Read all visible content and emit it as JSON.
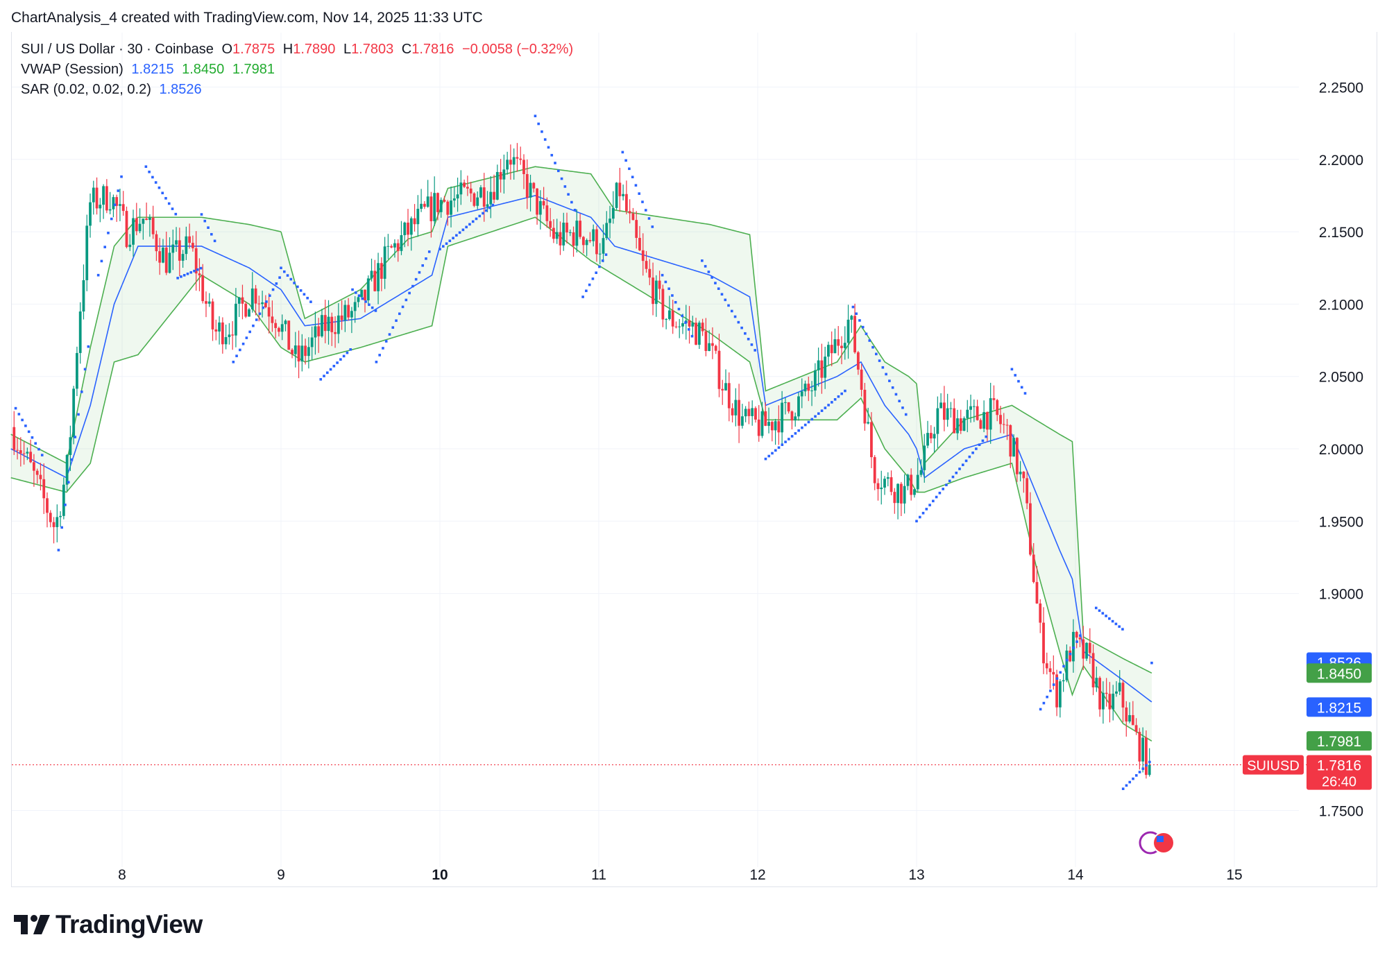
{
  "header": {
    "title": "ChartAnalysis_4 created with TradingView.com, Nov 14, 2025 11:33 UTC"
  },
  "legend": {
    "symbol": "SUI / US Dollar · 30 · Coinbase",
    "o_label": "O",
    "o": "1.7875",
    "h_label": "H",
    "h": "1.7890",
    "l_label": "L",
    "l": "1.7803",
    "c_label": "C",
    "c": "1.7816",
    "change": "−0.0058 (−0.32%)",
    "vwap_label": "VWAP (Session)",
    "vwap_mid": "1.8215",
    "vwap_up": "1.8450",
    "vwap_low": "1.7981",
    "sar_label": "SAR (0.02, 0.02, 0.2)",
    "sar": "1.8526"
  },
  "price_tags": {
    "sar": "1.8526",
    "vwap_up": "1.8450",
    "vwap_mid": "1.8215",
    "vwap_low": "1.7981",
    "symbol": "SUIUSD",
    "last": "1.7816",
    "countdown": "26:40"
  },
  "footer": {
    "brand": "TradingView"
  },
  "colors": {
    "up": "#089981",
    "down": "#f23645",
    "vwap": "#2962ff",
    "band": "#4caf50",
    "sar": "#2962ff"
  },
  "chart_data": {
    "type": "candlestick",
    "instrument": "SUIUSD",
    "interval": "30",
    "y_ticks": [
      "2.2500",
      "2.2000",
      "2.1500",
      "2.1000",
      "2.0500",
      "2.0000",
      "1.9500",
      "1.9000",
      "1.7500"
    ],
    "x_ticks": [
      "8",
      "9",
      "10",
      "11",
      "12",
      "13",
      "14",
      "15"
    ],
    "ylim": [
      1.72,
      2.28
    ],
    "x_range_days": [
      7.3,
      15.5
    ],
    "grid": true,
    "last_price": 1.7816,
    "close_path": [
      [
        7.32,
        2.015
      ],
      [
        7.45,
        1.985
      ],
      [
        7.6,
        1.945
      ],
      [
        7.68,
        1.99
      ],
      [
        7.75,
        2.09
      ],
      [
        7.82,
        2.17
      ],
      [
        7.95,
        2.175
      ],
      [
        8.05,
        2.15
      ],
      [
        8.15,
        2.16
      ],
      [
        8.3,
        2.13
      ],
      [
        8.45,
        2.14
      ],
      [
        8.6,
        2.08
      ],
      [
        8.7,
        2.085
      ],
      [
        8.85,
        2.11
      ],
      [
        9.0,
        2.09
      ],
      [
        9.12,
        2.06
      ],
      [
        9.3,
        2.085
      ],
      [
        9.5,
        2.095
      ],
      [
        9.7,
        2.135
      ],
      [
        9.9,
        2.16
      ],
      [
        10.0,
        2.17
      ],
      [
        10.2,
        2.175
      ],
      [
        10.35,
        2.18
      ],
      [
        10.45,
        2.205
      ],
      [
        10.6,
        2.175
      ],
      [
        10.75,
        2.145
      ],
      [
        10.9,
        2.15
      ],
      [
        11.05,
        2.14
      ],
      [
        11.15,
        2.18
      ],
      [
        11.3,
        2.125
      ],
      [
        11.45,
        2.09
      ],
      [
        11.6,
        2.085
      ],
      [
        11.7,
        2.075
      ],
      [
        11.8,
        2.045
      ],
      [
        11.92,
        2.02
      ],
      [
        12.05,
        2.015
      ],
      [
        12.2,
        2.025
      ],
      [
        12.35,
        2.04
      ],
      [
        12.5,
        2.07
      ],
      [
        12.6,
        2.09
      ],
      [
        12.68,
        2.04
      ],
      [
        12.75,
        1.985
      ],
      [
        12.85,
        1.975
      ],
      [
        12.95,
        1.97
      ],
      [
        13.05,
        1.985
      ],
      [
        13.15,
        2.025
      ],
      [
        13.3,
        2.02
      ],
      [
        13.5,
        2.025
      ],
      [
        13.6,
        2.01
      ],
      [
        13.7,
        1.97
      ],
      [
        13.8,
        1.87
      ],
      [
        13.9,
        1.83
      ],
      [
        14.0,
        1.865
      ],
      [
        14.1,
        1.855
      ],
      [
        14.2,
        1.82
      ],
      [
        14.3,
        1.83
      ],
      [
        14.4,
        1.8
      ],
      [
        14.48,
        1.7816
      ]
    ],
    "vwap_mid_path": [
      [
        7.3,
        2.0
      ],
      [
        7.65,
        1.98
      ],
      [
        7.8,
        2.03
      ],
      [
        7.95,
        2.1
      ],
      [
        8.1,
        2.14
      ],
      [
        8.5,
        2.14
      ],
      [
        8.8,
        2.125
      ],
      [
        9.0,
        2.11
      ],
      [
        9.15,
        2.085
      ],
      [
        9.5,
        2.09
      ],
      [
        9.8,
        2.11
      ],
      [
        9.95,
        2.12
      ],
      [
        10.05,
        2.16
      ],
      [
        10.6,
        2.175
      ],
      [
        10.95,
        2.16
      ],
      [
        11.1,
        2.14
      ],
      [
        11.4,
        2.13
      ],
      [
        11.7,
        2.12
      ],
      [
        11.95,
        2.105
      ],
      [
        12.05,
        2.03
      ],
      [
        12.5,
        2.05
      ],
      [
        12.65,
        2.06
      ],
      [
        12.8,
        2.03
      ],
      [
        12.95,
        2.01
      ],
      [
        13.0,
        2.0
      ],
      [
        13.05,
        1.98
      ],
      [
        13.3,
        2.0
      ],
      [
        13.6,
        2.01
      ],
      [
        13.75,
        1.97
      ],
      [
        13.9,
        1.93
      ],
      [
        13.98,
        1.91
      ],
      [
        14.05,
        1.86
      ],
      [
        14.3,
        1.84
      ],
      [
        14.48,
        1.825
      ]
    ],
    "vwap_upper_path": [
      [
        7.3,
        2.01
      ],
      [
        7.65,
        1.99
      ],
      [
        7.8,
        2.07
      ],
      [
        7.95,
        2.14
      ],
      [
        8.1,
        2.16
      ],
      [
        8.5,
        2.16
      ],
      [
        8.8,
        2.155
      ],
      [
        9.0,
        2.15
      ],
      [
        9.15,
        2.09
      ],
      [
        9.5,
        2.11
      ],
      [
        9.8,
        2.145
      ],
      [
        9.95,
        2.15
      ],
      [
        10.05,
        2.18
      ],
      [
        10.6,
        2.195
      ],
      [
        10.95,
        2.19
      ],
      [
        11.1,
        2.165
      ],
      [
        11.4,
        2.16
      ],
      [
        11.7,
        2.155
      ],
      [
        11.95,
        2.148
      ],
      [
        12.05,
        2.04
      ],
      [
        12.5,
        2.06
      ],
      [
        12.65,
        2.085
      ],
      [
        12.8,
        2.06
      ],
      [
        12.95,
        2.05
      ],
      [
        13.0,
        2.045
      ],
      [
        13.05,
        1.99
      ],
      [
        13.3,
        2.02
      ],
      [
        13.6,
        2.03
      ],
      [
        13.75,
        2.02
      ],
      [
        13.9,
        2.01
      ],
      [
        13.98,
        2.005
      ],
      [
        14.05,
        1.87
      ],
      [
        14.3,
        1.855
      ],
      [
        14.48,
        1.845
      ]
    ],
    "vwap_lower_path": [
      [
        7.3,
        1.98
      ],
      [
        7.65,
        1.97
      ],
      [
        7.8,
        1.99
      ],
      [
        7.95,
        2.06
      ],
      [
        8.1,
        2.065
      ],
      [
        8.5,
        2.12
      ],
      [
        8.8,
        2.1
      ],
      [
        9.0,
        2.07
      ],
      [
        9.15,
        2.06
      ],
      [
        9.5,
        2.07
      ],
      [
        9.8,
        2.08
      ],
      [
        9.95,
        2.085
      ],
      [
        10.05,
        2.14
      ],
      [
        10.6,
        2.16
      ],
      [
        10.95,
        2.13
      ],
      [
        11.1,
        2.12
      ],
      [
        11.4,
        2.1
      ],
      [
        11.7,
        2.08
      ],
      [
        11.95,
        2.06
      ],
      [
        12.05,
        2.02
      ],
      [
        12.5,
        2.02
      ],
      [
        12.65,
        2.035
      ],
      [
        12.8,
        2.0
      ],
      [
        12.95,
        1.98
      ],
      [
        13.0,
        1.97
      ],
      [
        13.05,
        1.97
      ],
      [
        13.3,
        1.98
      ],
      [
        13.6,
        1.99
      ],
      [
        13.75,
        1.92
      ],
      [
        13.9,
        1.86
      ],
      [
        13.98,
        1.83
      ],
      [
        14.05,
        1.85
      ],
      [
        14.3,
        1.81
      ],
      [
        14.48,
        1.798
      ]
    ],
    "sar_segments": [
      {
        "x0": 7.33,
        "x1": 7.5,
        "y0": 2.028,
        "y1": 1.995
      },
      {
        "x0": 7.6,
        "x1": 7.8,
        "y0": 1.93,
        "y1": 2.08
      },
      {
        "x0": 7.85,
        "x1": 8.0,
        "y0": 2.12,
        "y1": 2.19
      },
      {
        "x0": 8.15,
        "x1": 8.35,
        "y0": 2.195,
        "y1": 2.16
      },
      {
        "x0": 8.35,
        "x1": 8.5,
        "y0": 2.118,
        "y1": 2.125
      },
      {
        "x0": 8.5,
        "x1": 8.6,
        "y0": 2.162,
        "y1": 2.14
      },
      {
        "x0": 8.7,
        "x1": 9.0,
        "y0": 2.06,
        "y1": 2.12
      },
      {
        "x0": 9.0,
        "x1": 9.2,
        "y0": 2.125,
        "y1": 2.1
      },
      {
        "x0": 9.25,
        "x1": 9.45,
        "y0": 2.048,
        "y1": 2.07
      },
      {
        "x0": 9.45,
        "x1": 9.6,
        "y0": 2.11,
        "y1": 2.095
      },
      {
        "x0": 9.6,
        "x1": 9.95,
        "y0": 2.06,
        "y1": 2.14
      },
      {
        "x0": 10.0,
        "x1": 10.35,
        "y0": 2.138,
        "y1": 2.17
      },
      {
        "x0": 10.6,
        "x1": 10.85,
        "y0": 2.23,
        "y1": 2.165
      },
      {
        "x0": 10.9,
        "x1": 11.05,
        "y0": 2.105,
        "y1": 2.135
      },
      {
        "x0": 11.15,
        "x1": 11.35,
        "y0": 2.205,
        "y1": 2.15
      },
      {
        "x0": 11.4,
        "x1": 11.6,
        "y0": 2.12,
        "y1": 2.075
      },
      {
        "x0": 11.65,
        "x1": 12.0,
        "y0": 2.13,
        "y1": 2.065
      },
      {
        "x0": 12.05,
        "x1": 12.55,
        "y0": 1.993,
        "y1": 2.04
      },
      {
        "x0": 12.6,
        "x1": 12.95,
        "y0": 2.098,
        "y1": 2.02
      },
      {
        "x0": 13.0,
        "x1": 13.45,
        "y0": 1.95,
        "y1": 2.01
      },
      {
        "x0": 13.6,
        "x1": 13.7,
        "y0": 2.055,
        "y1": 2.035
      },
      {
        "x0": 13.78,
        "x1": 14.05,
        "y0": 1.82,
        "y1": 1.875
      },
      {
        "x0": 14.13,
        "x1": 14.3,
        "y0": 1.89,
        "y1": 1.875
      },
      {
        "x0": 14.3,
        "x1": 14.48,
        "y0": 1.765,
        "y1": 1.785
      },
      {
        "x0": 14.48,
        "x1": 14.5,
        "y0": 1.852,
        "y1": 1.8526
      }
    ]
  }
}
